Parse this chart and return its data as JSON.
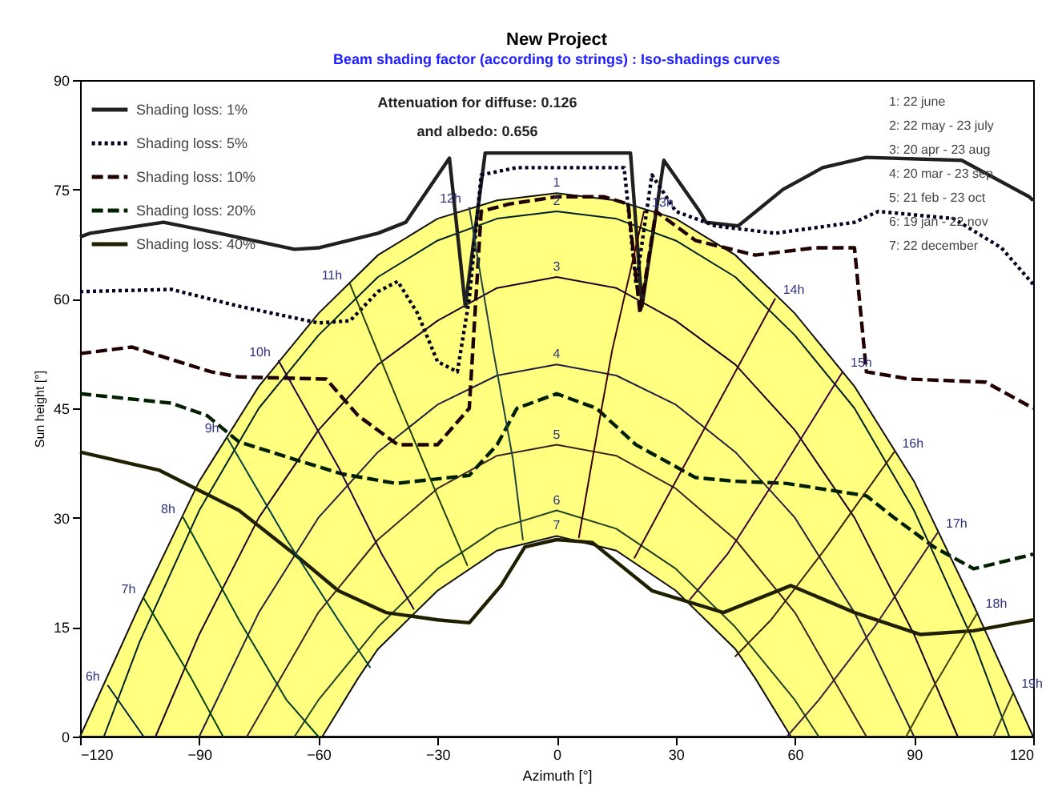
{
  "chart_data": {
    "type": "line",
    "title": "New Project",
    "subtitle": "Beam shading factor (according to strings) : Iso-shadings curves",
    "xlabel": "Azimuth [°]",
    "ylabel": "Sun height [°]",
    "xlim": [
      -120,
      120
    ],
    "xticks": [
      -120,
      -90,
      -60,
      -30,
      0,
      30,
      60,
      90,
      120
    ],
    "ylim": [
      0,
      90
    ],
    "yticks": [
      0,
      15,
      30,
      45,
      60,
      75,
      90
    ],
    "legend": "top left",
    "series": [
      {
        "type": "area",
        "color": "#ffff80",
        "line_style": "solid",
        "x": [
          -120,
          -105,
          -90,
          -75,
          -60,
          -45,
          -30,
          -15,
          0,
          15,
          30,
          45,
          60,
          75,
          90,
          105,
          120
        ],
        "values": [
          0,
          18,
          35,
          48,
          58,
          66,
          71,
          73.5,
          74.5,
          73.5,
          71,
          66,
          58,
          48,
          35,
          18,
          0
        ]
      },
      {
        "type": "area",
        "color": "#ffffff",
        "line_style": "solid",
        "x": [
          -59,
          -50,
          -45,
          -30,
          -15,
          0,
          15,
          30,
          45,
          50,
          59
        ],
        "values": [
          0,
          8,
          12,
          20,
          25.5,
          27.5,
          25.5,
          20,
          12,
          8,
          0
        ]
      },
      {
        "color": "#002020",
        "line_style": "solid",
        "x": [
          -114,
          -105,
          -90,
          -75,
          -60,
          -45,
          -30,
          -15,
          0,
          15,
          30,
          45,
          60,
          75,
          90,
          105,
          114
        ],
        "values": [
          0,
          13,
          31,
          45,
          55,
          63,
          68,
          71,
          72,
          71,
          68,
          63,
          55,
          45,
          31,
          13,
          0
        ]
      },
      {
        "color": "#200020",
        "line_style": "solid",
        "x": [
          -101,
          -90,
          -75,
          -60,
          -45,
          -30,
          -15,
          0,
          15,
          30,
          45,
          60,
          75,
          90,
          101
        ],
        "values": [
          0,
          14,
          30,
          42,
          51,
          57,
          61.5,
          63,
          61.5,
          57,
          51,
          42,
          30,
          14,
          0
        ]
      },
      {
        "color": "#202040",
        "line_style": "solid",
        "x": [
          -90,
          -75,
          -60,
          -45,
          -30,
          -15,
          0,
          15,
          30,
          45,
          60,
          75,
          90
        ],
        "values": [
          0,
          17,
          30,
          39,
          45.5,
          49.5,
          51,
          49.5,
          45.5,
          39,
          30,
          17,
          0
        ]
      },
      {
        "color": "#402020",
        "line_style": "solid",
        "x": [
          -78,
          -60,
          -45,
          -30,
          -15,
          0,
          15,
          30,
          45,
          60,
          78
        ],
        "values": [
          0,
          17,
          27,
          34,
          38.5,
          40,
          38.5,
          34,
          27,
          17,
          0
        ]
      },
      {
        "color": "#204020",
        "line_style": "solid",
        "x": [
          -66,
          -60,
          -45,
          -30,
          -15,
          0,
          15,
          30,
          45,
          60,
          66
        ],
        "values": [
          0,
          5,
          15,
          23,
          28.5,
          31,
          28.5,
          23,
          15,
          5,
          0
        ]
      },
      {
        "name": "Shading loss: 1%",
        "color": "#202020",
        "line_style": "solid",
        "x": [
          -120,
          -117.5,
          -99,
          -85,
          -66,
          -60,
          -45,
          -38,
          -27,
          -23,
          -18,
          -3,
          18.6,
          21.5,
          27,
          36,
          37.6,
          45.7,
          57,
          67,
          78,
          102,
          119,
          120
        ],
        "values": [
          68.5,
          69,
          70.5,
          69,
          66.8,
          67,
          69,
          70.5,
          79.3,
          59,
          80,
          80,
          80,
          59,
          79,
          72,
          70.5,
          70,
          75,
          78,
          79.4,
          79,
          74,
          73.5
        ]
      },
      {
        "name": "Shading loss: 5%",
        "color": "#000020",
        "line_style": "dotted",
        "x": [
          -120,
          -97,
          -80,
          -60,
          -52,
          -45,
          -40,
          -35,
          -30,
          -25,
          -22,
          -19,
          -10,
          0,
          10,
          17,
          20,
          24,
          30,
          40,
          55,
          75,
          81,
          100,
          112,
          120
        ],
        "values": [
          61,
          61.3,
          59,
          56.7,
          57,
          61,
          62.4,
          58,
          51.4,
          50,
          60,
          77,
          78,
          78,
          78,
          78,
          62,
          77,
          72,
          70,
          69,
          70.5,
          72,
          71,
          67,
          62
        ]
      },
      {
        "name": "Shading loss: 10%",
        "color": "#200000",
        "line_style": "dashed",
        "x": [
          -120,
          -107,
          -87,
          -80,
          -58,
          -50,
          -40,
          -30,
          -22,
          -19,
          -12,
          0,
          12,
          18,
          21,
          25,
          35,
          50,
          65,
          75,
          78,
          89,
          108,
          120
        ],
        "values": [
          52.5,
          53.4,
          50,
          49.3,
          49,
          44,
          40,
          40,
          45,
          72,
          73,
          74,
          74,
          73,
          58,
          72,
          68,
          66,
          67,
          67,
          50,
          49,
          48.6,
          45
        ]
      },
      {
        "name": "Shading loss: 20%",
        "color": "#002000",
        "line_style": "dashed",
        "x": [
          -120,
          -97,
          -88,
          -80,
          -66,
          -54,
          -40.5,
          -22,
          -15,
          -10,
          0,
          10,
          20,
          35,
          45,
          58,
          78,
          85,
          95,
          105,
          120
        ],
        "values": [
          47,
          45.7,
          44,
          40.4,
          38,
          36,
          34.7,
          35.8,
          40,
          45,
          47,
          45,
          40,
          35.5,
          35,
          34.7,
          33,
          30,
          26,
          23,
          25
        ]
      },
      {
        "name": "Shading loss: 40%",
        "color": "#202000",
        "line_style": "solid",
        "x": [
          -120,
          -100,
          -80,
          -66,
          -55,
          -43,
          -30,
          -22,
          -14,
          -8,
          0,
          9,
          24,
          42,
          59,
          75,
          91.5,
          105,
          120
        ],
        "values": [
          39,
          36.5,
          31,
          25,
          20,
          17,
          16,
          15.6,
          20.7,
          26,
          27,
          26.6,
          20,
          17,
          20.7,
          17,
          14,
          14.5,
          16
        ]
      },
      {
        "color": "#002040",
        "line_style": "solid",
        "x": [
          -113,
          -104
        ],
        "values": [
          7,
          0
        ]
      },
      {
        "color": "#004000",
        "line_style": "solid",
        "x": [
          -104,
          -92,
          -84
        ],
        "values": [
          19,
          8,
          0
        ]
      },
      {
        "color": "#004020",
        "line_style": "solid",
        "x": [
          -94,
          -80,
          -68,
          -60
        ],
        "values": [
          30,
          16,
          5,
          0
        ]
      },
      {
        "color": "#004040",
        "line_style": "solid",
        "x": [
          -83,
          -68,
          -55,
          -47
        ],
        "values": [
          41,
          27,
          16,
          9.5
        ]
      },
      {
        "color": "#200040",
        "line_style": "solid",
        "x": [
          -70,
          -55,
          -44,
          -36
        ],
        "values": [
          51.5,
          37,
          25,
          17.5
        ]
      },
      {
        "color": "#204000",
        "line_style": "solid",
        "x": [
          -52,
          -40,
          -30,
          -22.5
        ],
        "values": [
          62,
          46,
          33,
          23.5
        ]
      },
      {
        "color": "#204040",
        "line_style": "solid",
        "x": [
          -22,
          -16,
          -11,
          -8.5
        ],
        "values": [
          72.5,
          53,
          38,
          27
        ]
      },
      {
        "color": "#400000",
        "line_style": "solid",
        "x": [
          22,
          14,
          9,
          5.6
        ],
        "values": [
          72,
          53,
          38,
          27.3
        ]
      },
      {
        "color": "#400020",
        "line_style": "solid",
        "x": [
          55,
          40,
          28,
          19.6
        ],
        "values": [
          60,
          45,
          33,
          24.5
        ]
      },
      {
        "color": "#400040",
        "line_style": "solid",
        "x": [
          72,
          56,
          43,
          33.6
        ],
        "values": [
          50,
          36,
          25,
          18.8
        ]
      },
      {
        "color": "#402000",
        "line_style": "solid",
        "x": [
          85,
          68,
          54,
          45
        ],
        "values": [
          39,
          26,
          16,
          11
        ]
      },
      {
        "color": "#402040",
        "line_style": "solid",
        "x": [
          96,
          80,
          66,
          58
        ],
        "values": [
          28,
          15,
          5,
          0
        ]
      },
      {
        "color": "#404000",
        "line_style": "solid",
        "x": [
          106,
          94,
          88
        ],
        "values": [
          17,
          6,
          0
        ]
      },
      {
        "color": "#404020",
        "line_style": "solid",
        "x": [
          115,
          110
        ],
        "values": [
          6,
          0
        ]
      }
    ],
    "annotations": [
      "Attenuation for diffuse: 0.126",
      "and albedo: 0.656",
      "1: 22 june",
      "2: 22 may - 23 july",
      "3: 20 apr - 23 aug",
      "4: 20 mar - 23 sep",
      "5: 21 feb - 23 oct",
      "6: 19 jan - 22 nov",
      "7: 22 december",
      {
        "text": "6h",
        "x": -113,
        "y": 7
      },
      {
        "text": "7h",
        "x": -104,
        "y": 19
      },
      {
        "text": "8h",
        "x": -94,
        "y": 30
      },
      {
        "text": "9h",
        "x": -83,
        "y": 41
      },
      {
        "text": "10h",
        "x": -70,
        "y": 51.5
      },
      {
        "text": "11h",
        "x": -52,
        "y": 62
      },
      {
        "text": "12h",
        "x": -22,
        "y": 72.5
      },
      {
        "text": "13h",
        "x": 22,
        "y": 72
      },
      {
        "text": "14h",
        "x": 55,
        "y": 60
      },
      {
        "text": "15h",
        "x": 72,
        "y": 50
      },
      {
        "text": "16h",
        "x": 85,
        "y": 39
      },
      {
        "text": "17h",
        "x": 96,
        "y": 28
      },
      {
        "text": "18h",
        "x": 106,
        "y": 17
      },
      {
        "text": "19h",
        "x": 115,
        "y": 6
      },
      {
        "text": "1",
        "x": 0,
        "y": 74.5
      },
      {
        "text": "2",
        "x": 0,
        "y": 72
      },
      {
        "text": "3",
        "x": 0,
        "y": 63
      },
      {
        "text": "4",
        "x": 0,
        "y": 51
      },
      {
        "text": "5",
        "x": 0,
        "y": 40
      },
      {
        "text": "6",
        "x": 0,
        "y": 31
      },
      {
        "text": "7",
        "x": 0,
        "y": 27.5
      }
    ]
  }
}
